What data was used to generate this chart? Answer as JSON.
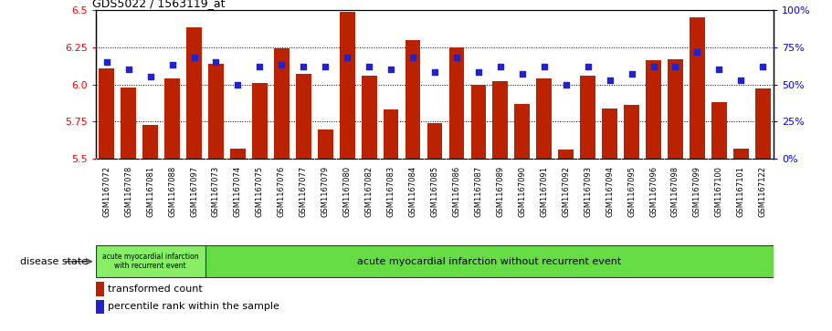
{
  "title": "GDS5022 / 1563119_at",
  "samples": [
    "GSM1167072",
    "GSM1167078",
    "GSM1167081",
    "GSM1167088",
    "GSM1167097",
    "GSM1167073",
    "GSM1167074",
    "GSM1167075",
    "GSM1167076",
    "GSM1167077",
    "GSM1167079",
    "GSM1167080",
    "GSM1167082",
    "GSM1167083",
    "GSM1167084",
    "GSM1167085",
    "GSM1167086",
    "GSM1167087",
    "GSM1167089",
    "GSM1167090",
    "GSM1167091",
    "GSM1167092",
    "GSM1167093",
    "GSM1167094",
    "GSM1167095",
    "GSM1167096",
    "GSM1167098",
    "GSM1167099",
    "GSM1167100",
    "GSM1167101",
    "GSM1167122"
  ],
  "bar_values": [
    6.11,
    5.98,
    5.73,
    6.04,
    6.38,
    6.14,
    5.57,
    6.01,
    6.24,
    6.07,
    5.7,
    6.49,
    6.06,
    5.83,
    6.3,
    5.74,
    6.25,
    6.0,
    6.02,
    5.87,
    6.04,
    5.56,
    6.06,
    5.84,
    5.86,
    6.16,
    6.17,
    6.45,
    5.88,
    5.57,
    5.97
  ],
  "percentile_values": [
    65,
    60,
    55,
    63,
    68,
    65,
    50,
    62,
    63,
    62,
    62,
    68,
    62,
    60,
    68,
    58,
    68,
    58,
    62,
    57,
    62,
    50,
    62,
    53,
    57,
    62,
    62,
    72,
    60,
    53,
    62
  ],
  "group1_count": 5,
  "group1_label": "acute myocardial infarction\nwith recurrent event",
  "group2_label": "acute myocardial infarction without recurrent event",
  "ylim": [
    5.5,
    6.5
  ],
  "y2lim": [
    0,
    100
  ],
  "yticks": [
    5.5,
    5.75,
    6.0,
    6.25,
    6.5
  ],
  "y2ticks": [
    0,
    25,
    50,
    75,
    100
  ],
  "y2ticklabels": [
    "0%",
    "25%",
    "50%",
    "75%",
    "100%"
  ],
  "bar_color": "#bb2200",
  "dot_color": "#2222cc",
  "bar_width": 0.7,
  "plot_bg": "#ffffff",
  "xtick_bg": "#d0d0d0",
  "green_bg": "#66dd44",
  "legend_label1": "transformed count",
  "legend_label2": "percentile rank within the sample"
}
